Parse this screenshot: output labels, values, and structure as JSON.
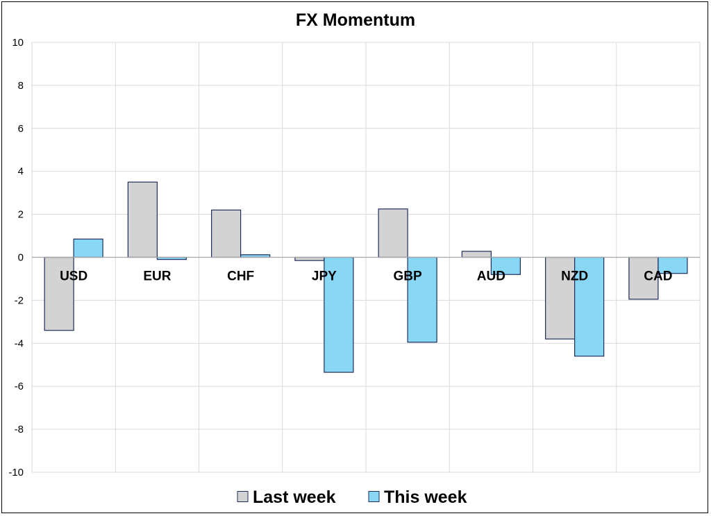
{
  "chart_data": {
    "type": "bar",
    "title": "FX Momentum",
    "xlabel": "",
    "ylabel": "",
    "categories": [
      "USD",
      "EUR",
      "CHF",
      "JPY",
      "GBP",
      "AUD",
      "NZD",
      "CAD"
    ],
    "series": [
      {
        "name": "Last week",
        "color": "#d3d3d3",
        "values": [
          -3.4,
          3.5,
          2.2,
          -0.15,
          2.25,
          0.28,
          -3.8,
          -1.95
        ]
      },
      {
        "name": "This week",
        "color": "#87d7f5",
        "values": [
          0.85,
          -0.1,
          0.12,
          -5.35,
          -3.95,
          -0.8,
          -4.6,
          -0.75
        ]
      }
    ],
    "ylim": [
      -10,
      10
    ],
    "yticks": [
      10,
      8,
      6,
      4,
      2,
      0,
      -2,
      -4,
      -6,
      -8,
      -10
    ],
    "grid": true,
    "legend_position": "bottom",
    "bar_edge_color": "#1f2d5a"
  }
}
